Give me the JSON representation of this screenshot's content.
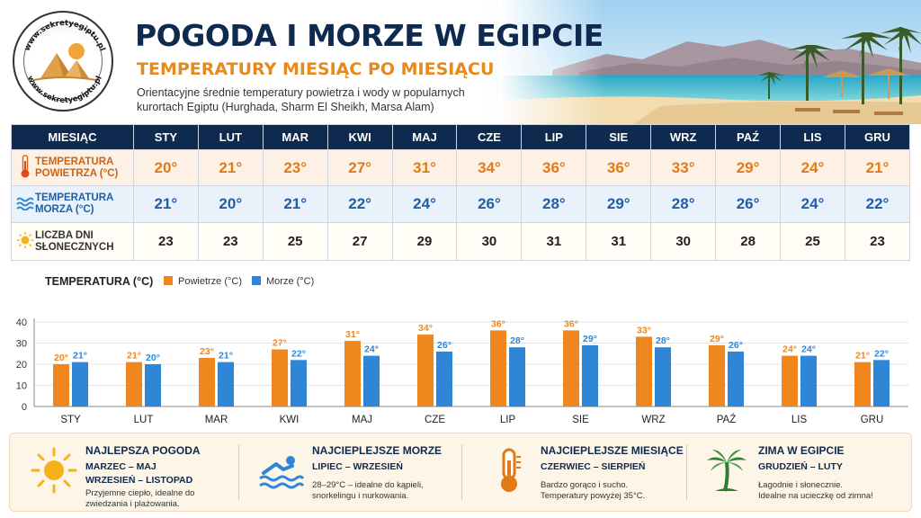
{
  "header": {
    "logo_text_top": "www.sekretyegiptu.pl",
    "logo_text_bottom": "www.sekretyegiptu.pl",
    "title": "POGODA I MORZE W EGIPCIE",
    "subtitle": "TEMPERATURY MIESIĄC PO MIESIĄCU",
    "desc_line1": "Orientacyjne średnie temperatury powietrza i wody w popularnych",
    "desc_line2": "kurortach Egiptu (Hurghada, Sharm El Sheikh, Marsa Alam)"
  },
  "table": {
    "header_label": "MIESIĄC",
    "months": [
      "STY",
      "LUT",
      "MAR",
      "KWI",
      "MAJ",
      "CZE",
      "LIP",
      "SIE",
      "WRZ",
      "PAŹ",
      "LIS",
      "GRU"
    ],
    "air": {
      "label1": "TEMPERATURA",
      "label2": "POWIETRZA (°C)",
      "icon": "thermometer-icon",
      "values": [
        "20°",
        "21°",
        "23°",
        "27°",
        "31°",
        "34°",
        "36°",
        "36°",
        "33°",
        "29°",
        "24°",
        "21°"
      ]
    },
    "sea": {
      "label1": "TEMPERATURA",
      "label2": "MORZA (°C)",
      "icon": "waves-icon",
      "values": [
        "21°",
        "20°",
        "21°",
        "22°",
        "24°",
        "26°",
        "28°",
        "29°",
        "28°",
        "26°",
        "24°",
        "22°"
      ]
    },
    "sun": {
      "label1": "LICZBA DNI",
      "label2": "SŁONECZNYCH",
      "icon": "sun-icon",
      "values": [
        "23",
        "23",
        "25",
        "27",
        "29",
        "30",
        "31",
        "31",
        "30",
        "28",
        "25",
        "23"
      ]
    }
  },
  "chart_data": {
    "type": "bar",
    "title": "TEMPERATURA (°C)",
    "categories": [
      "STY",
      "LUT",
      "MAR",
      "KWI",
      "MAJ",
      "CZE",
      "LIP",
      "SIE",
      "WRZ",
      "PAŹ",
      "LIS",
      "GRU"
    ],
    "series": [
      {
        "name": "Powietrze (°C)",
        "color": "#f0861e",
        "values": [
          20,
          21,
          23,
          27,
          31,
          34,
          36,
          36,
          33,
          29,
          24,
          21
        ],
        "labels": [
          "20°",
          "21°",
          "23°",
          "27°",
          "31°",
          "34°",
          "36°",
          "36°",
          "33°",
          "29°",
          "24°",
          "21°"
        ]
      },
      {
        "name": "Morze (°C)",
        "color": "#2f86d6",
        "values": [
          21,
          20,
          21,
          22,
          24,
          26,
          28,
          29,
          28,
          26,
          24,
          22
        ],
        "labels": [
          "21°",
          "20°",
          "21°",
          "22°",
          "24°",
          "26°",
          "28°",
          "29°",
          "28°",
          "26°",
          "24°",
          "22°"
        ]
      }
    ],
    "yticks": [
      "0",
      "10",
      "20",
      "30",
      "40"
    ],
    "ylim": [
      0,
      40
    ],
    "grid": true,
    "legend": "top-left"
  },
  "footer": {
    "cards": [
      {
        "icon": "sun-icon",
        "title": "NAJLEPSZA POGODA",
        "sub1": "MARZEC – MAJ",
        "sub2": "WRZESIEŃ – LISTOPAD",
        "desc1": "Przyjemne ciepło, idealne do",
        "desc2": "zwiedzania i plażowania."
      },
      {
        "icon": "swimmer-icon",
        "title": "NAJCIEPLEJSZE MORZE",
        "sub1": "LIPIEC – WRZESIEŃ",
        "sub2": "",
        "desc1": "28–29°C – idealne do kąpieli,",
        "desc2": "snorkelingu i nurkowania."
      },
      {
        "icon": "thermometer-icon",
        "title": "NAJCIEPLEJSZE MIESIĄCE",
        "sub1": "CZERWIEC – SIERPIEŃ",
        "sub2": "",
        "desc1": "Bardzo gorąco i sucho.",
        "desc2": "Temperatury powyżej 35°C."
      },
      {
        "icon": "palm-icon",
        "title": "ZIMA W EGIPCIE",
        "sub1": "GRUDZIEŃ – LUTY",
        "sub2": "",
        "desc1": "Łagodnie i słonecznie.",
        "desc2": "Idealne na ucieczkę od zimna!"
      }
    ]
  },
  "colors": {
    "navy": "#0f2a4f",
    "orange": "#e68a1f",
    "air_bar": "#f0861e",
    "sea_bar": "#2f86d6"
  }
}
